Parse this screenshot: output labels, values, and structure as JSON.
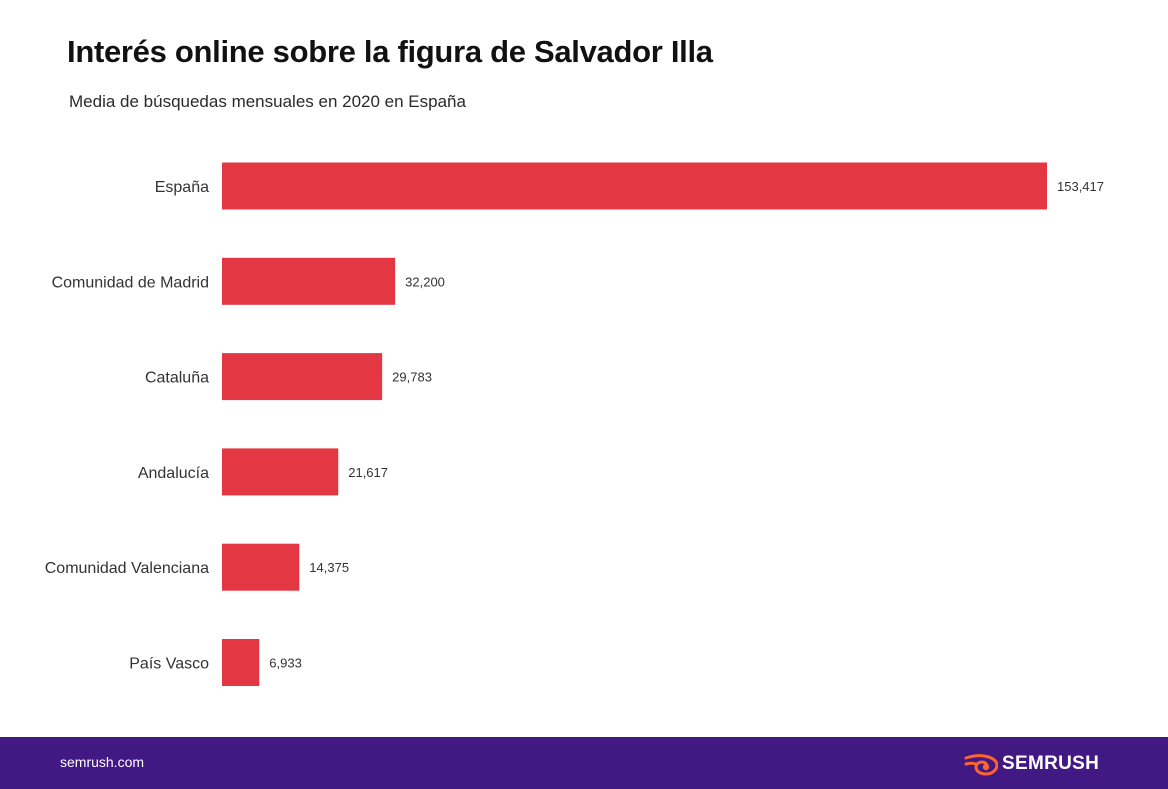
{
  "header": {
    "title": "Interés online sobre la figura de Salvador Illa",
    "subtitle": "Media de búsquedas mensuales en 2020 en España"
  },
  "chart_data": {
    "type": "bar",
    "orientation": "horizontal",
    "title": "Interés online sobre la figura de Salvador Illa",
    "subtitle": "Media de búsquedas mensuales en 2020 en España",
    "categories": [
      "España",
      "Comunidad de Madrid",
      "Cataluña",
      "Andalucía",
      "Comunidad Valenciana",
      "País Vasco"
    ],
    "values": [
      153417,
      32200,
      29783,
      21617,
      14375,
      6933
    ],
    "value_labels": [
      "153,417",
      "32,200",
      "29,783",
      "21,617",
      "14,375",
      "6,933"
    ],
    "xlim": [
      0,
      153417
    ],
    "grid": false,
    "legend": "none",
    "bar_color": "#e33844"
  },
  "footer": {
    "url": "semrush.com",
    "brand_name": "SEMRUSH",
    "brand_icon": "semrush-flame-icon",
    "background_color": "#421983",
    "icon_color": "#ff642d"
  }
}
